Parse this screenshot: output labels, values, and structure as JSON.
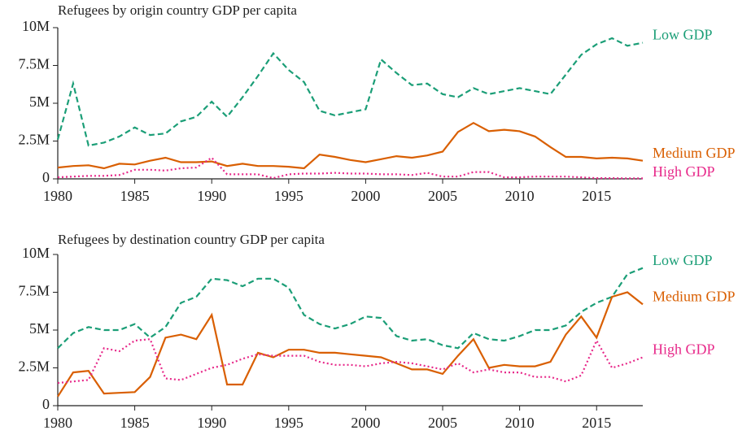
{
  "chart_data": [
    {
      "type": "line",
      "title": "Refugees by origin country GDP per capita",
      "x": [
        1980,
        1981,
        1982,
        1983,
        1984,
        1985,
        1986,
        1987,
        1988,
        1989,
        1990,
        1991,
        1992,
        1993,
        1994,
        1995,
        1996,
        1997,
        1998,
        1999,
        2000,
        2001,
        2002,
        2003,
        2004,
        2005,
        2006,
        2007,
        2008,
        2009,
        2010,
        2011,
        2012,
        2013,
        2014,
        2015,
        2016,
        2017,
        2018
      ],
      "xlim": [
        1980,
        2018
      ],
      "xticks": [
        1980,
        1985,
        1990,
        1995,
        2000,
        2005,
        2010,
        2015
      ],
      "ylim": [
        0,
        10000000
      ],
      "yticks": [
        0,
        {
          "value": 2500000,
          "label": "2.5M"
        },
        {
          "value": 5000000,
          "label": "5M"
        },
        {
          "value": 7500000,
          "label": "7.5M"
        },
        {
          "value": 10000000,
          "label": "10M"
        }
      ],
      "series": [
        {
          "name": "Low GDP",
          "color": "#1b9e77",
          "linestyle": "dashed",
          "values": [
            2600000,
            6300000,
            2200000,
            2400000,
            2800000,
            3400000,
            2900000,
            3000000,
            3800000,
            4100000,
            5100000,
            4100000,
            5400000,
            6800000,
            8300000,
            7200000,
            6400000,
            4500000,
            4200000,
            4400000,
            4600000,
            7900000,
            7000000,
            6200000,
            6300000,
            5600000,
            5400000,
            6000000,
            5600000,
            5800000,
            6000000,
            5800000,
            5600000,
            6900000,
            8200000,
            8900000,
            9300000,
            8800000,
            9000000
          ]
        },
        {
          "name": "Medium GDP",
          "color": "#d95f02",
          "linestyle": "solid",
          "values": [
            750000,
            850000,
            900000,
            700000,
            1000000,
            950000,
            1200000,
            1400000,
            1100000,
            1100000,
            1150000,
            850000,
            1000000,
            850000,
            850000,
            800000,
            700000,
            1600000,
            1450000,
            1250000,
            1100000,
            1300000,
            1500000,
            1400000,
            1550000,
            1800000,
            3100000,
            3700000,
            3150000,
            3250000,
            3150000,
            2800000,
            2100000,
            1450000,
            1450000,
            1350000,
            1400000,
            1350000,
            1200000
          ]
        },
        {
          "name": "High GDP",
          "color": "#e7298a",
          "linestyle": "dotted",
          "values": [
            100000,
            150000,
            200000,
            200000,
            250000,
            600000,
            600000,
            550000,
            700000,
            750000,
            1400000,
            300000,
            300000,
            300000,
            50000,
            300000,
            350000,
            350000,
            400000,
            350000,
            350000,
            300000,
            300000,
            250000,
            400000,
            150000,
            150000,
            450000,
            450000,
            100000,
            100000,
            150000,
            150000,
            150000,
            100000,
            50000,
            50000,
            30000,
            30000
          ]
        }
      ]
    },
    {
      "type": "line",
      "title": "Refugees by destination country GDP per capita",
      "x": [
        1980,
        1981,
        1982,
        1983,
        1984,
        1985,
        1986,
        1987,
        1988,
        1989,
        1990,
        1991,
        1992,
        1993,
        1994,
        1995,
        1996,
        1997,
        1998,
        1999,
        2000,
        2001,
        2002,
        2003,
        2004,
        2005,
        2006,
        2007,
        2008,
        2009,
        2010,
        2011,
        2012,
        2013,
        2014,
        2015,
        2016,
        2017,
        2018
      ],
      "xlim": [
        1980,
        2018
      ],
      "xticks": [
        1980,
        1985,
        1990,
        1995,
        2000,
        2005,
        2010,
        2015
      ],
      "ylim": [
        0,
        10000000
      ],
      "yticks": [
        0,
        {
          "value": 2500000,
          "label": "2.5M"
        },
        {
          "value": 5000000,
          "label": "5M"
        },
        {
          "value": 7500000,
          "label": "7.5M"
        },
        {
          "value": 10000000,
          "label": "10M"
        }
      ],
      "series": [
        {
          "name": "Low GDP",
          "color": "#1b9e77",
          "linestyle": "dashed",
          "values": [
            3800000,
            4800000,
            5200000,
            5000000,
            5000000,
            5400000,
            4500000,
            5200000,
            6800000,
            7200000,
            8400000,
            8300000,
            7900000,
            8400000,
            8400000,
            7800000,
            6000000,
            5400000,
            5100000,
            5400000,
            5900000,
            5800000,
            4600000,
            4300000,
            4400000,
            4000000,
            3800000,
            4800000,
            4400000,
            4300000,
            4600000,
            5000000,
            5000000,
            5300000,
            6200000,
            6800000,
            7200000,
            8700000,
            9100000
          ]
        },
        {
          "name": "Medium GDP",
          "color": "#d95f02",
          "linestyle": "solid",
          "values": [
            600000,
            2200000,
            2300000,
            800000,
            850000,
            900000,
            1900000,
            4500000,
            4700000,
            4400000,
            6000000,
            1400000,
            1400000,
            3500000,
            3200000,
            3700000,
            3700000,
            3500000,
            3500000,
            3400000,
            3300000,
            3200000,
            2800000,
            2400000,
            2400000,
            2100000,
            3300000,
            4400000,
            2500000,
            2700000,
            2600000,
            2600000,
            2900000,
            4700000,
            5900000,
            4500000,
            7200000,
            7500000,
            6700000
          ]
        },
        {
          "name": "High GDP",
          "color": "#e7298a",
          "linestyle": "dotted",
          "values": [
            1500000,
            1600000,
            1700000,
            3800000,
            3600000,
            4300000,
            4400000,
            1800000,
            1700000,
            2100000,
            2500000,
            2700000,
            3100000,
            3400000,
            3300000,
            3300000,
            3300000,
            2900000,
            2700000,
            2700000,
            2600000,
            2800000,
            2900000,
            2800000,
            2600000,
            2400000,
            2800000,
            2200000,
            2400000,
            2200000,
            2200000,
            1900000,
            1900000,
            1600000,
            2000000,
            4300000,
            2500000,
            2800000,
            3200000
          ]
        }
      ]
    }
  ]
}
